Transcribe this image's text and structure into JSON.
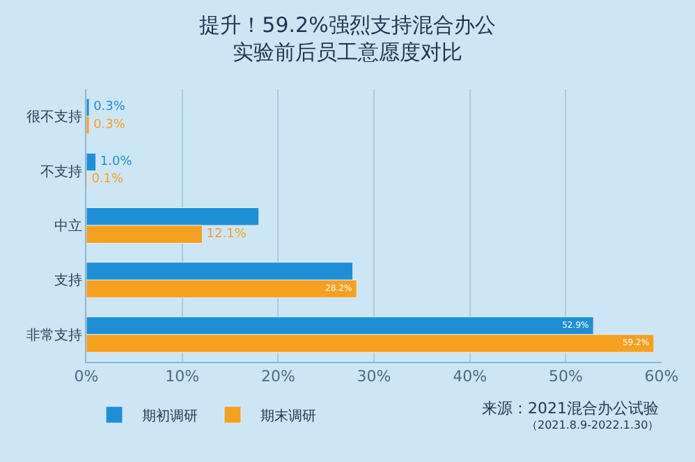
{
  "chart_data": {
    "type": "bar",
    "orientation": "horizontal",
    "title": "提升！59.2%强烈支持混合办公",
    "subtitle": "实验前后员工意愿度对比",
    "categories": [
      "很不支持",
      "不支持",
      "中立",
      "支持",
      "非常支持"
    ],
    "series": [
      {
        "name": "期初调研",
        "color": "#1e8fd6",
        "values": [
          0.3,
          1.0,
          18.0,
          27.8,
          52.9
        ],
        "value_labels": [
          "0.3%",
          "1.0%",
          null,
          null,
          "52.9%"
        ]
      },
      {
        "name": "期末调研",
        "color": "#f5a01f",
        "values": [
          0.3,
          0.1,
          12.1,
          28.2,
          59.2
        ],
        "value_labels": [
          "0.3%",
          "0.1%",
          "12.1%",
          "28.2%",
          "59.2%"
        ]
      }
    ],
    "xlim": [
      0,
      60
    ],
    "xticks": [
      {
        "value": 0,
        "label": "0%"
      },
      {
        "value": 10,
        "label": "10%"
      },
      {
        "value": 20,
        "label": "20%"
      },
      {
        "value": 30,
        "label": "30%"
      },
      {
        "value": 40,
        "label": "40%"
      },
      {
        "value": 50,
        "label": "50%"
      },
      {
        "value": 60,
        "label": "60%"
      }
    ],
    "grid": "x",
    "legend": "bottom left",
    "annotations": [
      "来源：2021混合办公试验",
      "（2021.8.9-2022.1.30）"
    ]
  }
}
